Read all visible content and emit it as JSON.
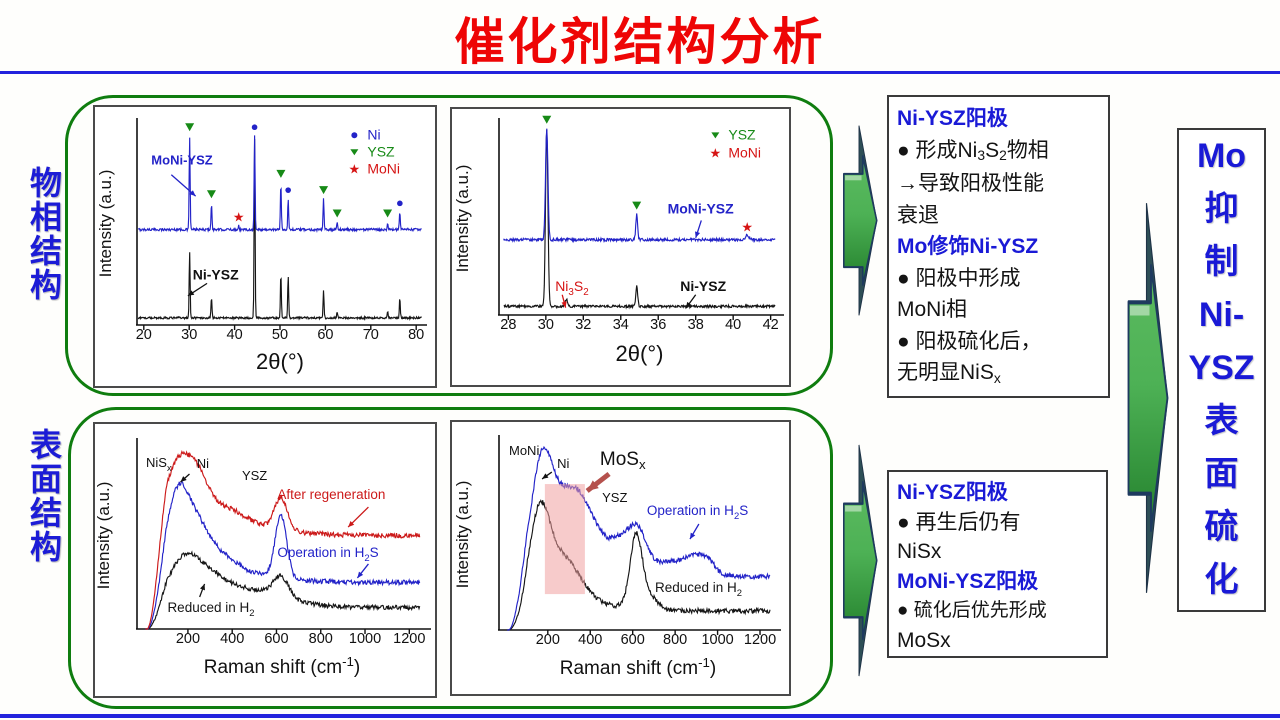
{
  "slide": {
    "title": "催化剂结构分析"
  },
  "colors": {
    "title_red": "#ee0505",
    "divider_blue": "#2323dd",
    "label_blue": "#1c1cd6",
    "group_border_green": "#0f7d0f",
    "arrow_green_light": "#4db155",
    "arrow_green_dark": "#23802c",
    "arrow_back_dark": "#2e4f56",
    "arrow_outline": "#1e3a5f",
    "trace_blue": "#2323c8",
    "trace_red": "#cc1a1a",
    "trace_black": "#161616",
    "marker_green": "#178a17",
    "marker_red": "#d61414",
    "highlight_pink": "#f0a0a0"
  },
  "side_labels": [
    {
      "id": "phase",
      "chars": [
        "物",
        "相",
        "结",
        "构"
      ]
    },
    {
      "id": "surface",
      "chars": [
        "表",
        "面",
        "结",
        "构"
      ]
    }
  ],
  "conclusion_box": {
    "lines": [
      "Mo",
      "抑",
      "制",
      "Ni-",
      "YSZ",
      "表",
      "面",
      "硫",
      "化"
    ]
  },
  "finding_boxes": [
    {
      "id": "xrd",
      "lines": [
        {
          "style": "head",
          "segs": [
            {
              "t": "Ni-YSZ阳极"
            }
          ]
        },
        {
          "style": "body",
          "segs": [
            {
              "t": "● 形成Ni"
            },
            {
              "t": "3",
              "sub": true
            },
            {
              "t": "S"
            },
            {
              "t": "2",
              "sub": true
            },
            {
              "t": "物相"
            }
          ]
        },
        {
          "style": "body",
          "segs": [
            {
              "t": "→导致阳极性能"
            }
          ]
        },
        {
          "style": "body",
          "segs": [
            {
              "t": "衰退"
            }
          ]
        },
        {
          "style": "head",
          "segs": [
            {
              "t": "Mo修饰Ni-YSZ"
            }
          ]
        },
        {
          "style": "body",
          "segs": [
            {
              "t": "● 阳极中形成"
            }
          ]
        },
        {
          "style": "body",
          "segs": [
            {
              "t": "MoNi相"
            }
          ]
        },
        {
          "style": "body",
          "segs": [
            {
              "t": "● 阳极硫化后，"
            }
          ]
        },
        {
          "style": "body",
          "segs": [
            {
              "t": "无明显NiS"
            },
            {
              "t": "x",
              "sub": true
            }
          ]
        }
      ]
    },
    {
      "id": "raman",
      "lines": [
        {
          "style": "head",
          "segs": [
            {
              "t": "Ni-YSZ阳极"
            }
          ]
        },
        {
          "style": "body",
          "segs": [
            {
              "t": "● 再生后仍有"
            }
          ]
        },
        {
          "style": "body",
          "segs": [
            {
              "t": "NiSx"
            }
          ]
        },
        {
          "style": "head",
          "segs": [
            {
              "t": "MoNi-YSZ阳极"
            }
          ]
        },
        {
          "style": "body-sm",
          "segs": [
            {
              "t": "● 硫化后优先形成"
            }
          ]
        },
        {
          "style": "body",
          "segs": [
            {
              "t": "MoSx"
            }
          ]
        }
      ]
    }
  ],
  "chart_data": [
    {
      "id": "xrd-full",
      "type": "line",
      "kind": "xrd",
      "title": "",
      "xlabel": [
        {
          "t": "2θ(°)"
        }
      ],
      "ylabel": "Intensity (a.u.)",
      "xlim": [
        18.5,
        81.5
      ],
      "xticks": [
        20,
        30,
        40,
        50,
        60,
        70,
        80
      ],
      "grid": false,
      "legend_position": "top-right",
      "series": [
        {
          "name": "MoNi-YSZ",
          "color": "#2323c8",
          "baseline": 0.47,
          "noise": 0.006,
          "peaks": [
            [
              30.1,
              0.46
            ],
            [
              34.9,
              0.13
            ],
            [
              40.9,
              0.02
            ],
            [
              44.4,
              0.46
            ],
            [
              50.2,
              0.23
            ],
            [
              51.8,
              0.15
            ],
            [
              59.6,
              0.15
            ],
            [
              62.6,
              0.035
            ],
            [
              73.7,
              0.035
            ],
            [
              76.4,
              0.085
            ]
          ]
        },
        {
          "name": "Ni-YSZ",
          "color": "#161616",
          "baseline": 0.035,
          "noise": 0.005,
          "peaks": [
            [
              30.1,
              0.33
            ],
            [
              34.9,
              0.1
            ],
            [
              44.4,
              0.88
            ],
            [
              50.2,
              0.22
            ],
            [
              51.8,
              0.21
            ],
            [
              59.6,
              0.14
            ],
            [
              62.6,
              0.03
            ],
            [
              73.7,
              0.03
            ],
            [
              76.4,
              0.1
            ]
          ]
        }
      ],
      "markers": [
        {
          "x": 30.1,
          "m": "tri"
        },
        {
          "x": 34.9,
          "m": "tri"
        },
        {
          "x": 40.9,
          "m": "star"
        },
        {
          "x": 44.4,
          "m": "dot"
        },
        {
          "x": 50.2,
          "m": "tri"
        },
        {
          "x": 51.8,
          "m": "dot"
        },
        {
          "x": 59.6,
          "m": "tri"
        },
        {
          "x": 62.6,
          "m": "tri"
        },
        {
          "x": 73.7,
          "m": "tri"
        },
        {
          "x": 76.4,
          "m": "dot"
        }
      ],
      "legend": {
        "fx": 0.76,
        "fy": 0.085,
        "dy": 17,
        "items": [
          {
            "marker": "dot",
            "color": "#2323c8",
            "label": "Ni"
          },
          {
            "marker": "tri",
            "color": "#178a17",
            "label": "YSZ"
          },
          {
            "marker": "star",
            "color": "#d61414",
            "label": "MoNi"
          }
        ]
      },
      "annotations": [
        {
          "segs": [
            {
              "t": "MoNi-YSZ"
            }
          ],
          "color": "#2323c8",
          "bold": true,
          "size": 13,
          "fx": 0.05,
          "fy": 0.21,
          "arrow": {
            "x1": 0.12,
            "y1": 0.26,
            "x2": 0.205,
            "y2": 0.365
          }
        },
        {
          "segs": [
            {
              "t": "Ni-YSZ"
            }
          ],
          "color": "#111111",
          "bold": true,
          "size": 14,
          "fx": 0.195,
          "fy": 0.775,
          "arrow": {
            "x1": 0.245,
            "y1": 0.795,
            "x2": 0.178,
            "y2": 0.856
          }
        }
      ]
    },
    {
      "id": "xrd-zoom",
      "type": "line",
      "kind": "xrd",
      "title": "",
      "xlabel": [
        {
          "t": "2θ(°)"
        }
      ],
      "ylabel": "Intensity (a.u.)",
      "xlim": [
        27.5,
        42.5
      ],
      "xticks": [
        28,
        30,
        32,
        34,
        36,
        38,
        40,
        42
      ],
      "grid": false,
      "legend_position": "top-right",
      "series": [
        {
          "name": "MoNi-YSZ",
          "color": "#2323c8",
          "baseline": 0.39,
          "noise": 0.007,
          "peaks": [
            [
              30.05,
              0.575,
              0.09
            ],
            [
              34.85,
              0.13,
              0.07
            ],
            [
              40.75,
              0.022,
              0.14
            ]
          ]
        },
        {
          "name": "Ni-YSZ",
          "color": "#161616",
          "baseline": 0.045,
          "noise": 0.006,
          "peaks": [
            [
              30.05,
              0.92,
              0.09
            ],
            [
              31.1,
              0.035,
              0.09
            ],
            [
              34.85,
              0.105,
              0.07
            ]
          ]
        }
      ],
      "markers": [
        {
          "x": 30.05,
          "m": "tri"
        },
        {
          "x": 34.85,
          "m": "tri"
        },
        {
          "x": 40.75,
          "m": "star"
        }
      ],
      "legend": {
        "fx": 0.77,
        "fy": 0.09,
        "dy": 18,
        "items": [
          {
            "marker": "tri",
            "color": "#178a17",
            "label": "YSZ"
          },
          {
            "marker": "star",
            "color": "#d61414",
            "label": "MoNi"
          }
        ]
      },
      "annotations": [
        {
          "segs": [
            {
              "t": "MoNi-YSZ"
            }
          ],
          "color": "#2323c8",
          "bold": true,
          "size": 14,
          "fx": 0.6,
          "fy": 0.475,
          "arrow": {
            "x1": 0.72,
            "y1": 0.51,
            "x2": 0.7,
            "y2": 0.6
          }
        },
        {
          "segs": [
            {
              "t": "Ni"
            },
            {
              "t": "3",
              "sub": true
            },
            {
              "t": "S"
            },
            {
              "t": "2",
              "sub": true
            }
          ],
          "color": "#d61414",
          "bold": false,
          "size": 14,
          "fx": 0.2,
          "fy": 0.875,
          "arrow": {
            "x1": 0.225,
            "y1": 0.895,
            "x2": 0.237,
            "y2": 0.962
          }
        },
        {
          "segs": [
            {
              "t": "Ni-YSZ"
            }
          ],
          "color": "#111111",
          "bold": true,
          "size": 14,
          "fx": 0.645,
          "fy": 0.875,
          "arrow": {
            "x1": 0.7,
            "y1": 0.895,
            "x2": 0.665,
            "y2": 0.965
          }
        }
      ]
    },
    {
      "id": "raman-ni",
      "type": "line",
      "kind": "raman",
      "title": "",
      "xlabel": [
        {
          "t": "Raman shift (cm"
        },
        {
          "t": "-1",
          "sup": true
        },
        {
          "t": ")"
        }
      ],
      "ylabel": "Intensity (a.u.)",
      "xlim": [
        -30,
        1280
      ],
      "xticks": [
        200,
        400,
        600,
        800,
        1000,
        1200
      ],
      "grid": false,
      "onset": {
        "start": 15,
        "width": 95
      },
      "series": [
        {
          "name": "After regeneration",
          "color": "#cc1a1a",
          "baseline": 0.5,
          "noise": 0.013,
          "humps": [
            [
              160,
              0.3,
              55
            ],
            [
              250,
              0.16,
              45
            ],
            [
              360,
              0.07,
              90
            ],
            [
              620,
              0.17,
              30
            ],
            [
              210,
              0.1,
              260
            ]
          ]
        },
        {
          "name": "Operation in H2S",
          "color": "#2323c8",
          "baseline": 0.25,
          "noise": 0.013,
          "humps": [
            [
              155,
              0.4,
              50
            ],
            [
              250,
              0.2,
              55
            ],
            [
              365,
              0.06,
              60
            ],
            [
              620,
              0.33,
              26
            ],
            [
              260,
              0.08,
              240
            ]
          ]
        },
        {
          "name": "Reduced in H2",
          "color": "#161616",
          "baseline": 0.115,
          "noise": 0.012,
          "humps": [
            [
              170,
              0.16,
              60
            ],
            [
              265,
              0.12,
              80
            ],
            [
              450,
              0.07,
              180
            ],
            [
              620,
              0.11,
              35
            ],
            [
              300,
              0.04,
              220
            ]
          ]
        }
      ],
      "annotations": [
        {
          "segs": [
            {
              "t": "NiS"
            },
            {
              "t": "x",
              "sub": true
            }
          ],
          "color": "#111111",
          "size": 13,
          "fx": 0.031,
          "fy": 0.134
        },
        {
          "segs": [
            {
              "t": "Ni"
            }
          ],
          "color": "#111111",
          "size": 13,
          "fx": 0.206,
          "fy": 0.139,
          "arrow": {
            "x1": 0.181,
            "y1": 0.171,
            "x2": 0.15,
            "y2": 0.214
          }
        },
        {
          "segs": [
            {
              "t": "YSZ"
            }
          ],
          "color": "#111111",
          "size": 13,
          "fx": 0.362,
          "fy": 0.203
        },
        {
          "segs": [
            {
              "t": "After regeneration"
            }
          ],
          "color": "#cc1a1a",
          "size": 13.5,
          "fx": 0.484,
          "fy": 0.305,
          "arrow": {
            "x1": 0.798,
            "y1": 0.348,
            "x2": 0.728,
            "y2": 0.455
          }
        },
        {
          "segs": [
            {
              "t": "Operation in H"
            },
            {
              "t": "2",
              "sub": true
            },
            {
              "t": "S"
            }
          ],
          "color": "#2323c8",
          "size": 13.5,
          "fx": 0.484,
          "fy": 0.615,
          "arrow": {
            "x1": 0.798,
            "y1": 0.652,
            "x2": 0.76,
            "y2": 0.727
          }
        },
        {
          "segs": [
            {
              "t": "Reduced in H"
            },
            {
              "t": "2",
              "sub": true
            }
          ],
          "color": "#161616",
          "size": 13.5,
          "fx": 0.105,
          "fy": 0.909,
          "arrow": {
            "x1": 0.216,
            "y1": 0.829,
            "x2": 0.233,
            "y2": 0.759
          }
        }
      ]
    },
    {
      "id": "raman-moni",
      "type": "line",
      "kind": "raman",
      "title": "",
      "xlabel": [
        {
          "t": "Raman shift (cm"
        },
        {
          "t": "-1",
          "sup": true
        },
        {
          "t": ")"
        }
      ],
      "ylabel": "Intensity (a.u.)",
      "xlim": [
        -30,
        1280
      ],
      "xticks": [
        200,
        400,
        600,
        800,
        1000,
        1200
      ],
      "grid": false,
      "onset": {
        "start": 15,
        "width": 95
      },
      "highlight": {
        "fx1": 0.165,
        "fx2": 0.309,
        "fy1": 0.236,
        "fy2": 0.812,
        "color": "#f0a0a0",
        "opacity": 0.55
      },
      "series": [
        {
          "name": "Operation in H2S",
          "color": "#2323c8",
          "baseline": 0.28,
          "noise": 0.013,
          "humps": [
            [
              170,
              0.5,
              48
            ],
            [
              255,
              0.26,
              65
            ],
            [
              345,
              0.24,
              60
            ],
            [
              430,
              0.13,
              70
            ],
            [
              565,
              0.15,
              55
            ],
            [
              630,
              0.15,
              38
            ],
            [
              755,
              0.06,
              70
            ],
            [
              890,
              0.09,
              55
            ],
            [
              955,
              0.05,
              35
            ],
            [
              300,
              0.05,
              280
            ]
          ]
        },
        {
          "name": "Reduced in H2",
          "color": "#161616",
          "baseline": 0.1,
          "noise": 0.012,
          "humps": [
            [
              160,
              0.42,
              45
            ],
            [
              245,
              0.2,
              65
            ],
            [
              340,
              0.08,
              60
            ],
            [
              615,
              0.35,
              28
            ],
            [
              665,
              0.08,
              45
            ],
            [
              230,
              0.06,
              220
            ]
          ]
        }
      ],
      "annotations": [
        {
          "segs": [
            {
              "t": "MoNi"
            }
          ],
          "color": "#111111",
          "size": 13,
          "fx": 0.036,
          "fy": 0.084
        },
        {
          "segs": [
            {
              "t": "Ni"
            }
          ],
          "color": "#111111",
          "size": 13,
          "fx": 0.209,
          "fy": 0.152,
          "arrow": {
            "x1": 0.19,
            "y1": 0.173,
            "x2": 0.155,
            "y2": 0.209
          }
        },
        {
          "segs": [
            {
              "t": "MoS"
            },
            {
              "t": "x",
              "sub": true
            }
          ],
          "color": "#111111",
          "size": 19,
          "fx": 0.363,
          "fy": 0.136
        },
        {
          "segs": [
            {
              "t": "YSZ"
            }
          ],
          "color": "#111111",
          "size": 13,
          "fx": 0.371,
          "fy": 0.33
        },
        {
          "segs": [
            {
              "t": "Operation in H"
            },
            {
              "t": "2",
              "sub": true
            },
            {
              "t": "S"
            }
          ],
          "color": "#2323c8",
          "size": 13.5,
          "fx": 0.532,
          "fy": 0.398,
          "arrow": {
            "x1": 0.719,
            "y1": 0.445,
            "x2": 0.687,
            "y2": 0.524
          }
        },
        {
          "segs": [
            {
              "t": "Reduced in H"
            },
            {
              "t": "2",
              "sub": true
            }
          ],
          "color": "#161616",
          "size": 13.5,
          "fx": 0.561,
          "fy": 0.801
        }
      ],
      "big_arrow": {
        "x1": 0.396,
        "y1": 0.183,
        "x2": 0.317,
        "y2": 0.272,
        "color": "#b5514d",
        "width": 5
      }
    }
  ]
}
